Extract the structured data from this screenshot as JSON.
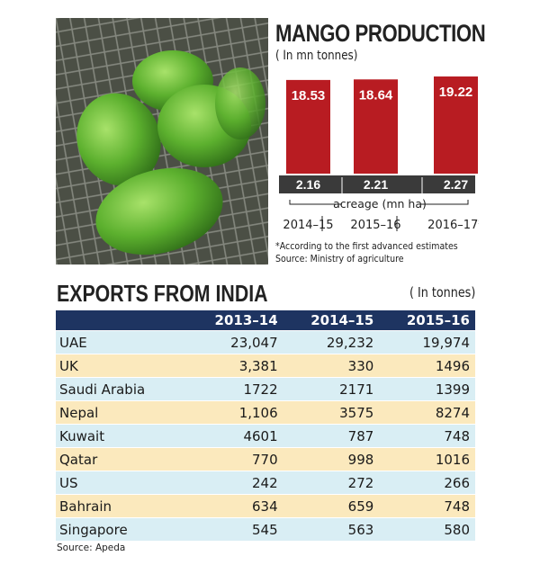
{
  "colors": {
    "bar": "#b81c22",
    "navy": "#1e3461",
    "row_blue": "#d9eef4",
    "row_yellow": "#fbe9bd"
  },
  "photo": {
    "subject": "green-mangoes-photo"
  },
  "production": {
    "title": "MANGO PRODUCTION",
    "unit": "( In mn tonnes)",
    "acreage_label": "acreage (mn ha)",
    "footnote": "*According to the first advanced estimates",
    "source": "Source: Ministry of agriculture"
  },
  "exports": {
    "title": "EXPORTS FROM INDIA",
    "unit": "( In tonnes)",
    "headers": [
      "",
      "2013–14",
      "2014–15",
      "2015–16"
    ],
    "rows": [
      [
        "UAE",
        "23,047",
        "29,232",
        "19,974"
      ],
      [
        "UK",
        "3,381",
        "330",
        "1496"
      ],
      [
        "Saudi Arabia",
        "1722",
        "2171",
        "1399"
      ],
      [
        "Nepal",
        "1,106",
        "3575",
        "8274"
      ],
      [
        "Kuwait",
        "4601",
        "787",
        "748"
      ],
      [
        "Qatar",
        "770",
        "998",
        "1016"
      ],
      [
        "US",
        "242",
        "272",
        "266"
      ],
      [
        "Bahrain",
        "634",
        "659",
        "748"
      ],
      [
        "Singapore",
        "545",
        "563",
        "580"
      ]
    ],
    "source": "Source: Apeda"
  },
  "chart_data": [
    {
      "type": "bar",
      "title": "MANGO PRODUCTION",
      "unit": "( In mn tonnes)",
      "categories": [
        "2014–15",
        "2015–16",
        "2016–17*"
      ],
      "series": [
        {
          "values": [
            18.53,
            18.64,
            19.22
          ]
        }
      ],
      "acreage": {
        "label": "acreage (mn ha)",
        "values": [
          2.16,
          2.21,
          2.27
        ]
      }
    },
    {
      "type": "table",
      "title": "EXPORTS FROM INDIA",
      "unit": "( In tonnes)",
      "columns": [
        "2013–14",
        "2014–15",
        "2015–16"
      ],
      "rows": [
        {
          "country": "UAE",
          "values": [
            23047,
            29232,
            19974
          ]
        },
        {
          "country": "UK",
          "values": [
            3381,
            330,
            1496
          ]
        },
        {
          "country": "Saudi Arabia",
          "values": [
            1722,
            2171,
            1399
          ]
        },
        {
          "country": "Nepal",
          "values": [
            1106,
            3575,
            8274
          ]
        },
        {
          "country": "Kuwait",
          "values": [
            4601,
            787,
            748
          ]
        },
        {
          "country": "Qatar",
          "values": [
            770,
            998,
            1016
          ]
        },
        {
          "country": "US",
          "values": [
            242,
            272,
            266
          ]
        },
        {
          "country": "Bahrain",
          "values": [
            634,
            659,
            748
          ]
        },
        {
          "country": "Singapore",
          "values": [
            545,
            563,
            580
          ]
        }
      ]
    }
  ]
}
